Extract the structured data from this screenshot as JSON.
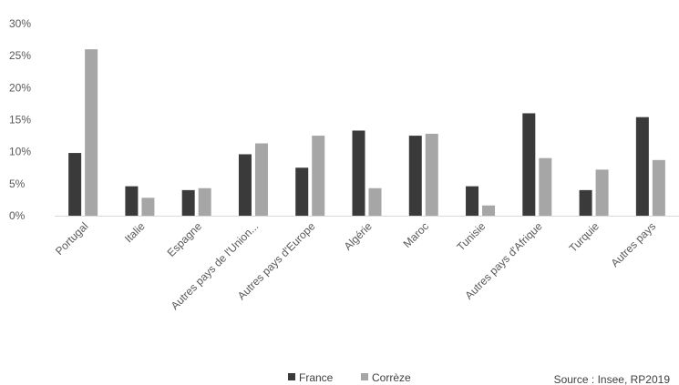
{
  "colors": {
    "series_france": "#3a3a3a",
    "series_correze": "#a6a6a6",
    "axis": "#d9d9d9"
  },
  "source": "Source : Insee, RP2019",
  "chart_data": {
    "type": "bar",
    "categories": [
      "Portugal",
      "Italie",
      "Espagne",
      "Autres pays de l'Union...",
      "Autres pays d'Europe",
      "Algérie",
      "Maroc",
      "Tunisie",
      "Autres pays d'Afrique",
      "Turquie",
      "Autres pays"
    ],
    "series": [
      {
        "name": "France",
        "values": [
          9.8,
          4.6,
          4.0,
          9.6,
          7.5,
          13.3,
          12.5,
          4.6,
          16.0,
          4.0,
          15.4
        ]
      },
      {
        "name": "Corrèze",
        "values": [
          26.0,
          2.8,
          4.3,
          11.3,
          12.5,
          4.3,
          12.8,
          1.6,
          9.0,
          7.2,
          8.7
        ]
      }
    ],
    "yticks": [
      "0%",
      "5%",
      "10%",
      "15%",
      "20%",
      "25%",
      "30%"
    ],
    "ylim": [
      0,
      30
    ],
    "unit": "%",
    "grid": false,
    "legend_position": "bottom"
  }
}
